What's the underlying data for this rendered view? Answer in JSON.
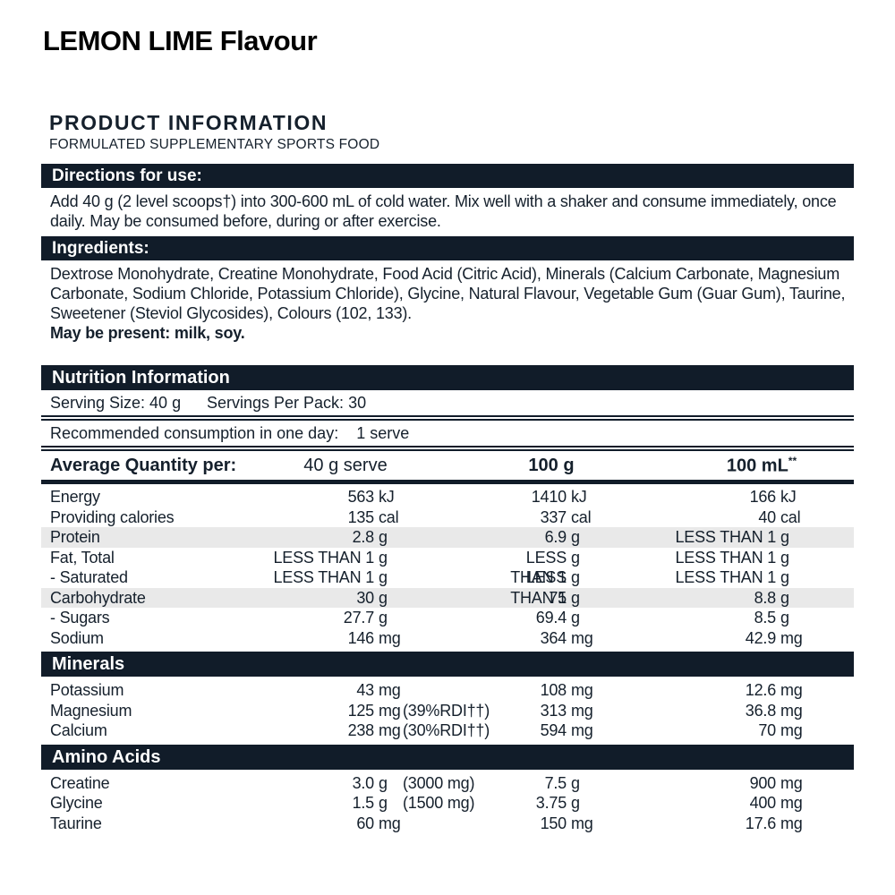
{
  "colors": {
    "bar": "#111c29",
    "text": "#15202c",
    "stripe": "#e9e9e9",
    "title": "#000000"
  },
  "page": {
    "title": "LEMON LIME Flavour"
  },
  "product_info": {
    "heading": "PRODUCT INFORMATION",
    "subheading": "FORMULATED SUPPLEMENTARY SPORTS FOOD"
  },
  "directions": {
    "heading": "Directions for use:",
    "body": "Add 40 g (2 level scoops†) into 300-600 mL of cold water. Mix well with a shaker and consume immediately, once daily. May be consumed before, during or after exercise."
  },
  "ingredients": {
    "heading": "Ingredients:",
    "body": "Dextrose Monohydrate, Creatine Monohydrate, Food Acid (Citric Acid), Minerals (Calcium Carbonate, Magnesium Carbonate, Sodium Chloride, Potassium Chloride), Glycine, Natural Flavour, Vegetable Gum (Guar Gum), Taurine, Sweetener (Steviol Glycosides), Colours (102, 133).",
    "may_be_present": "May be present: milk, soy."
  },
  "nutrition": {
    "heading": "Nutrition Information",
    "serving_size": "Serving Size: 40 g",
    "servings_per_pack": "Servings Per Pack: 30",
    "recommended_label": "Recommended consumption in one day:",
    "recommended_value": "1 serve",
    "columns": {
      "label": "Average Quantity per:",
      "col1": "40 g serve",
      "col2": "100 g",
      "col3": "100 mL",
      "col3_sup": "**"
    },
    "rows": [
      {
        "type": "row",
        "label": "Energy",
        "c1n": "563",
        "c1u": "kJ",
        "c1note": "",
        "c2n": "1410",
        "c2u": "kJ",
        "c3n": "166",
        "c3u": "kJ",
        "stripe": false
      },
      {
        "type": "row",
        "label": "Providing calories",
        "c1n": "135",
        "c1u": "cal",
        "c1note": "",
        "c2n": "337",
        "c2u": "cal",
        "c3n": "40",
        "c3u": "cal",
        "stripe": false
      },
      {
        "type": "row",
        "label": "Protein",
        "c1n": "2.8",
        "c1u": "g",
        "c1note": "",
        "c2n": "6.9",
        "c2u": "g",
        "c3n": "LESS THAN 1",
        "c3u": "g",
        "stripe": true
      },
      {
        "type": "row",
        "label": "Fat, Total",
        "c1n": "LESS THAN 1",
        "c1u": "g",
        "c1note": "",
        "c2n": "LESS THAN 1",
        "c2u": "g",
        "c3n": "LESS THAN 1",
        "c3u": "g",
        "stripe": false
      },
      {
        "type": "row",
        "label": "- Saturated",
        "c1n": "LESS THAN 1",
        "c1u": "g",
        "c1note": "",
        "c2n": "LESS THAN 1",
        "c2u": "g",
        "c3n": "LESS THAN 1",
        "c3u": "g",
        "stripe": false
      },
      {
        "type": "row",
        "label": "Carbohydrate",
        "c1n": "30",
        "c1u": "g",
        "c1note": "",
        "c2n": "75",
        "c2u": "g",
        "c3n": "8.8",
        "c3u": "g",
        "stripe": true
      },
      {
        "type": "row",
        "label": "- Sugars",
        "c1n": "27.7",
        "c1u": "g",
        "c1note": "",
        "c2n": "69.4",
        "c2u": "g",
        "c3n": "8.5",
        "c3u": "g",
        "stripe": false
      },
      {
        "type": "row",
        "label": "Sodium",
        "c1n": "146",
        "c1u": "mg",
        "c1note": "",
        "c2n": "364",
        "c2u": "mg",
        "c3n": "42.9",
        "c3u": "mg",
        "stripe": false
      },
      {
        "type": "section",
        "label": "Minerals"
      },
      {
        "type": "row",
        "label": "Potassium",
        "c1n": "43",
        "c1u": "mg",
        "c1note": "",
        "c2n": "108",
        "c2u": "mg",
        "c3n": "12.6",
        "c3u": "mg",
        "stripe": false
      },
      {
        "type": "row",
        "label": "Magnesium",
        "c1n": "125",
        "c1u": "mg",
        "c1note": "(39%RDI††)",
        "c2n": "313",
        "c2u": "mg",
        "c3n": "36.8",
        "c3u": "mg",
        "stripe": false
      },
      {
        "type": "row",
        "label": "Calcium",
        "c1n": "238",
        "c1u": "mg",
        "c1note": "(30%RDI††)",
        "c2n": "594",
        "c2u": "mg",
        "c3n": "70",
        "c3u": "mg",
        "stripe": false
      },
      {
        "type": "section",
        "label": "Amino Acids"
      },
      {
        "type": "row",
        "label": "Creatine",
        "c1n": "3.0",
        "c1u": "g",
        "c1note": "(3000 mg)",
        "c2n": "7.5",
        "c2u": "g",
        "c3n": "900",
        "c3u": "mg",
        "stripe": false
      },
      {
        "type": "row",
        "label": "Glycine",
        "c1n": "1.5",
        "c1u": "g",
        "c1note": "(1500 mg)",
        "c2n": "3.75",
        "c2u": "g",
        "c3n": "400",
        "c3u": "mg",
        "stripe": false
      },
      {
        "type": "row",
        "label": "Taurine",
        "c1n": "60",
        "c1u": "mg",
        "c1note": "",
        "c2n": "150",
        "c2u": "mg",
        "c3n": "17.6",
        "c3u": "mg",
        "stripe": false
      }
    ]
  }
}
